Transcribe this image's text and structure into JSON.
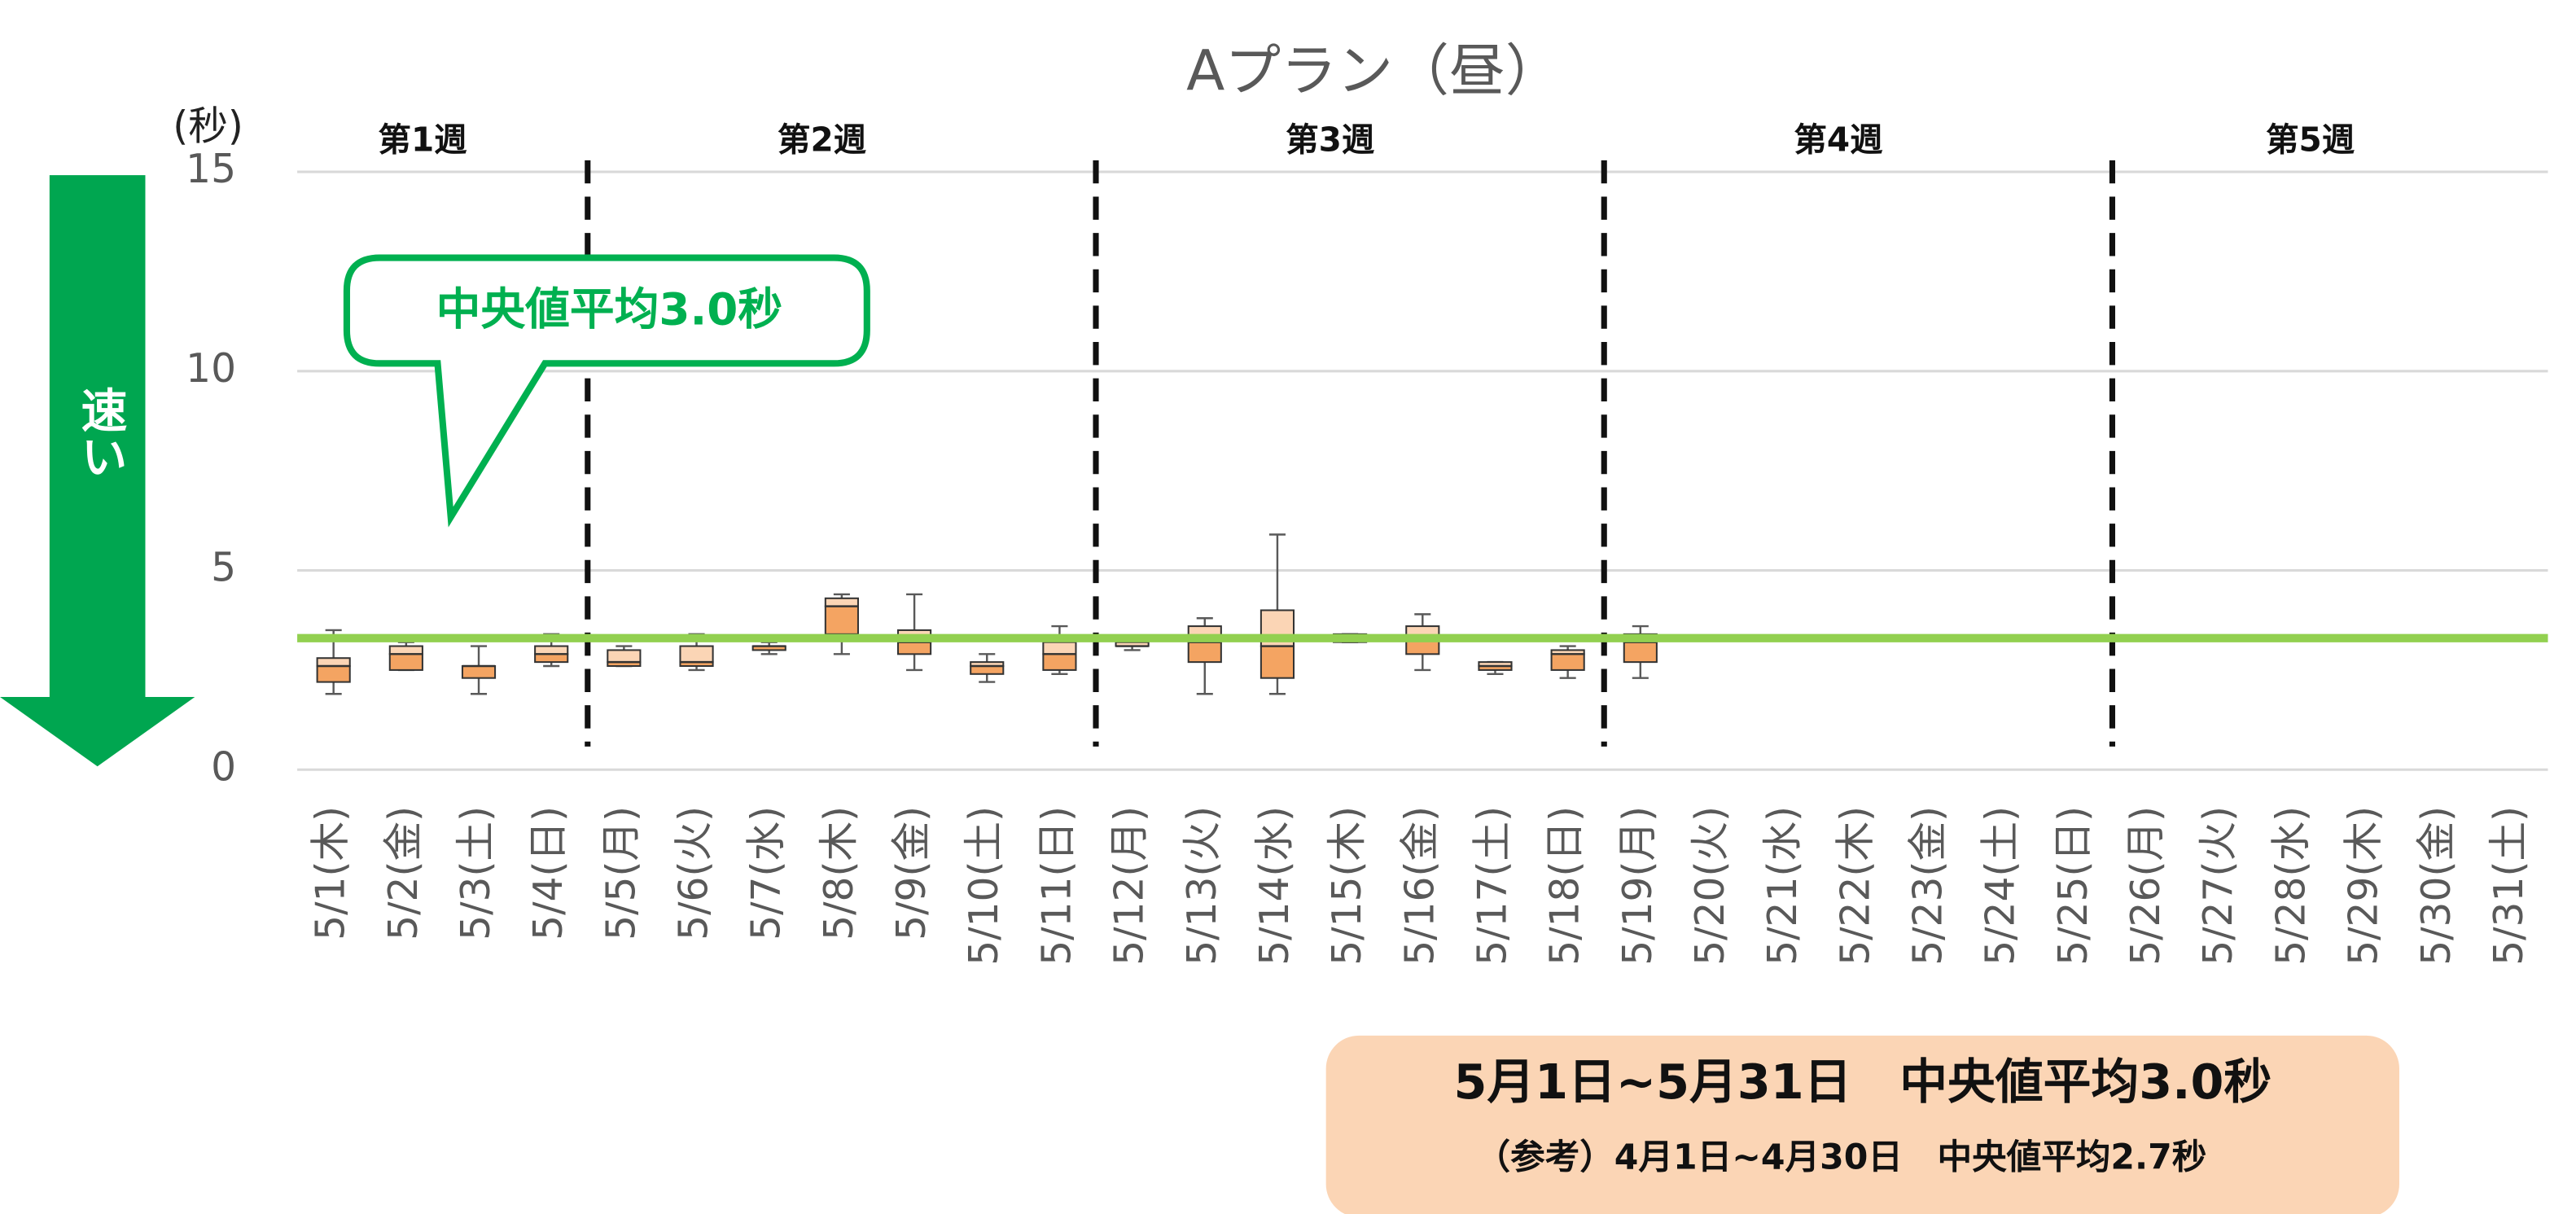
{
  "chart_data": {
    "type": "box",
    "title": "Aプラン（昼）",
    "y_unit": "(秒)",
    "arrow_label": "速い",
    "callout": "中央値平均3.0秒",
    "summary": [
      "5月1日~5月31日　中央値平均3.0秒",
      "（参考）4月1日~4月30日　中央値平均2.7秒"
    ],
    "weeks": [
      "第1週",
      "第2週",
      "第3週",
      "第4週",
      "第5週"
    ],
    "categories": [
      "5/1(木)",
      "5/2(金)",
      "5/3(土)",
      "5/4(日)",
      "5/5(月)",
      "5/6(火)",
      "5/7(水)",
      "5/8(木)",
      "5/9(金)",
      "5/10(土)",
      "5/11(日)",
      "5/12(月)",
      "5/13(火)",
      "5/14(水)",
      "5/15(木)",
      "5/16(金)",
      "5/17(土)",
      "5/18(日)",
      "5/19(月)",
      "5/20(火)",
      "5/21(水)",
      "5/22(木)",
      "5/23(金)",
      "5/24(土)",
      "5/25(日)",
      "5/26(月)",
      "5/27(火)",
      "5/28(水)",
      "5/29(木)",
      "5/30(金)",
      "5/31(土)"
    ],
    "boxes": [
      {
        "min": 1.9,
        "q1": 2.2,
        "median": 2.6,
        "q3": 2.8,
        "max": 3.5
      },
      {
        "min": 2.5,
        "q1": 2.5,
        "median": 2.9,
        "q3": 3.1,
        "max": 3.2
      },
      {
        "min": 1.9,
        "q1": 2.3,
        "median": 2.6,
        "q3": 2.6,
        "max": 3.1
      },
      {
        "min": 2.6,
        "q1": 2.7,
        "median": 2.9,
        "q3": 3.1,
        "max": 3.4
      },
      {
        "min": 2.6,
        "q1": 2.6,
        "median": 2.7,
        "q3": 3.0,
        "max": 3.1
      },
      {
        "min": 2.5,
        "q1": 2.6,
        "median": 2.7,
        "q3": 3.1,
        "max": 3.4
      },
      {
        "min": 2.9,
        "q1": 3.0,
        "median": 3.1,
        "q3": 3.1,
        "max": 3.2
      },
      {
        "min": 2.9,
        "q1": 3.4,
        "median": 4.1,
        "q3": 4.3,
        "max": 4.4
      },
      {
        "min": 2.5,
        "q1": 2.9,
        "median": 3.2,
        "q3": 3.5,
        "max": 4.4
      },
      {
        "min": 2.2,
        "q1": 2.4,
        "median": 2.6,
        "q3": 2.7,
        "max": 2.9
      },
      {
        "min": 2.4,
        "q1": 2.5,
        "median": 2.9,
        "q3": 3.2,
        "max": 3.6
      },
      {
        "min": 3.0,
        "q1": 3.1,
        "median": 3.1,
        "q3": 3.2,
        "max": 3.2
      },
      {
        "min": 1.9,
        "q1": 2.7,
        "median": 3.2,
        "q3": 3.6,
        "max": 3.8
      },
      {
        "min": 1.9,
        "q1": 2.3,
        "median": 3.1,
        "q3": 4.0,
        "max": 5.9
      },
      {
        "min": 3.2,
        "q1": 3.2,
        "median": 3.3,
        "q3": 3.4,
        "max": 3.4
      },
      {
        "min": 2.5,
        "q1": 2.9,
        "median": 3.3,
        "q3": 3.6,
        "max": 3.9
      },
      {
        "min": 2.4,
        "q1": 2.5,
        "median": 2.6,
        "q3": 2.7,
        "max": 2.7
      },
      {
        "min": 2.3,
        "q1": 2.5,
        "median": 2.9,
        "q3": 3.0,
        "max": 3.1
      },
      {
        "min": 2.3,
        "q1": 2.7,
        "median": 3.2,
        "q3": 3.4,
        "max": 3.6
      },
      null,
      null,
      null,
      null,
      null,
      null,
      null,
      null,
      null,
      null,
      null,
      null
    ],
    "reference_line": 3.3,
    "ylim": [
      0,
      15
    ],
    "yticks": [
      0,
      5,
      10,
      15
    ],
    "grid": true,
    "colors": {
      "lower": "#f4a462",
      "upper": "#fbd5b5",
      "reference": "#92d050",
      "accent": "#00a650"
    }
  }
}
